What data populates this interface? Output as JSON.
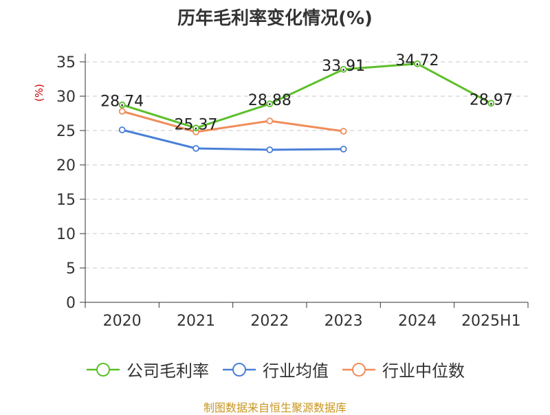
{
  "chart_data": {
    "type": "line",
    "title": "历年毛利率变化情况(%)",
    "ylabel": "(%)",
    "xlabel": "",
    "categories": [
      "2020",
      "2021",
      "2022",
      "2023",
      "2024",
      "2025H1"
    ],
    "ylim": [
      0,
      35
    ],
    "yticks": [
      "0",
      "5",
      "10",
      "15",
      "20",
      "25",
      "30",
      "35"
    ],
    "grid": true,
    "legend_position": "bottom",
    "series": [
      {
        "name": "公司毛利率",
        "color": "#5cbf2a",
        "values": [
          28.74,
          25.37,
          28.88,
          33.91,
          34.72,
          28.97
        ],
        "labels": [
          "28.74",
          "25.37",
          "28.88",
          "33.91",
          "34.72",
          "28.97"
        ]
      },
      {
        "name": "行业均值",
        "color": "#4a7fd8",
        "values": [
          25.1,
          22.4,
          22.2,
          22.3,
          null,
          null
        ]
      },
      {
        "name": "行业中位数",
        "color": "#f08c5a",
        "values": [
          27.8,
          24.8,
          26.4,
          24.9,
          null,
          null
        ]
      }
    ]
  },
  "source": "制图数据来自恒生聚源数据库"
}
